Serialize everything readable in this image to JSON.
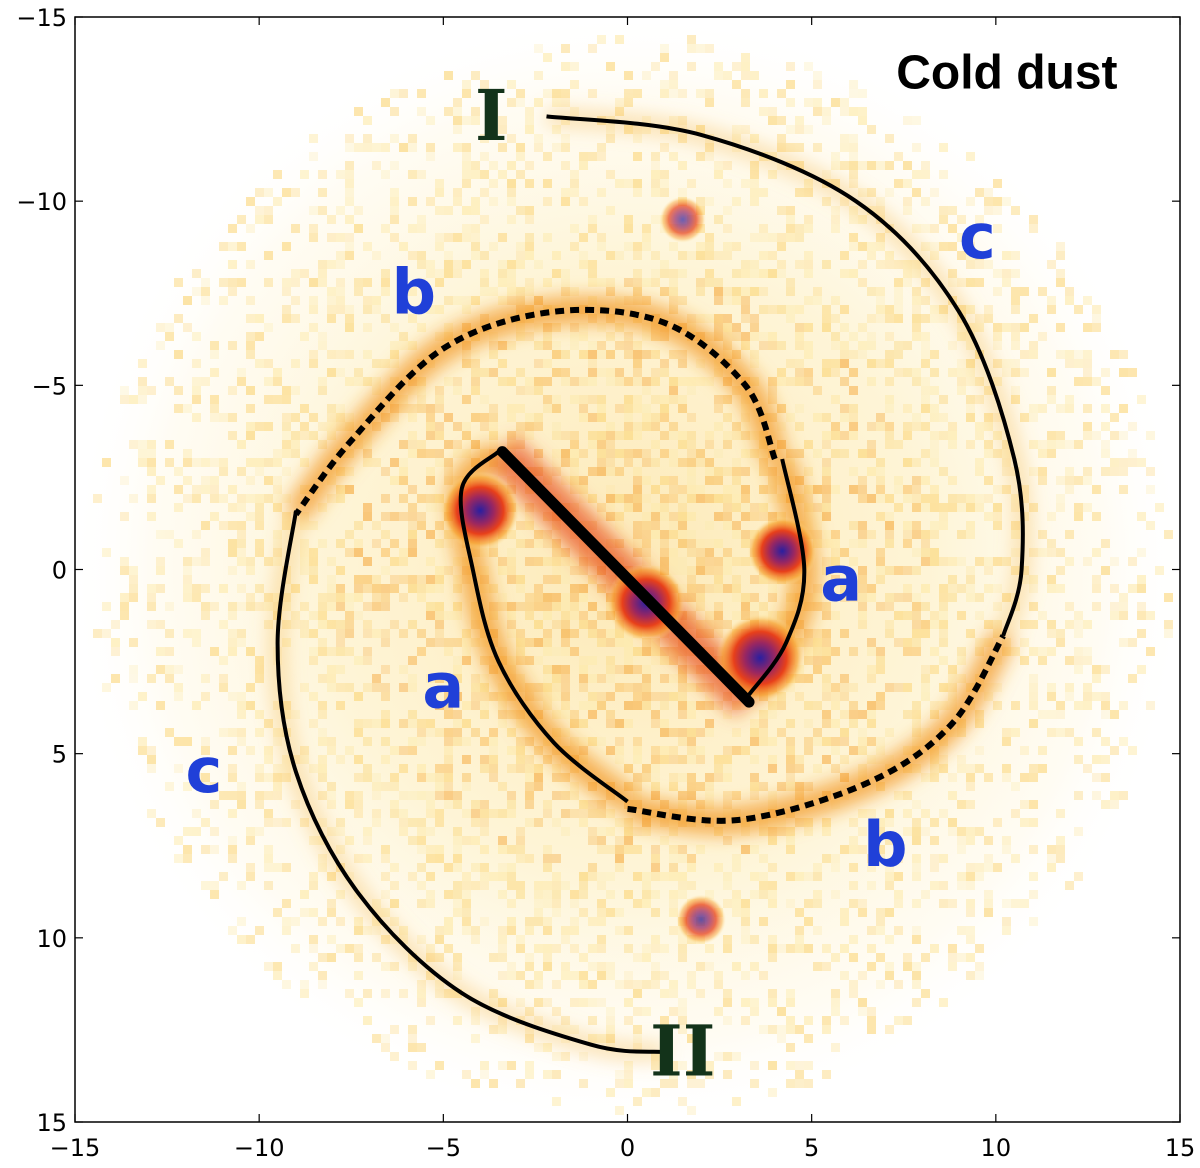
{
  "chart_data": {
    "type": "heatmap",
    "title": "Cold dust",
    "xlabel": "",
    "ylabel": "",
    "xlim": [
      -15,
      15
    ],
    "ylim": [
      15,
      -15
    ],
    "y_axis_inverted": true,
    "grid": false,
    "colormap": "white-yellow-orange-red-purple-blue",
    "x_ticks": [
      "−15",
      "−10",
      "−5",
      "0",
      "5",
      "10",
      "15"
    ],
    "x_tick_values": [
      -15,
      -10,
      -5,
      0,
      5,
      10,
      15
    ],
    "y_ticks": [
      "−15",
      "−10",
      "−5",
      "0",
      "5",
      "10",
      "15"
    ],
    "y_tick_values": [
      -15,
      -10,
      -5,
      0,
      5,
      10,
      15
    ],
    "bar": {
      "from": [
        -3.4,
        -3.2
      ],
      "to": [
        3.3,
        3.6
      ]
    },
    "emission_peaks": [
      {
        "x": 3.6,
        "y": 2.4,
        "level": 1.0
      },
      {
        "x": 0.5,
        "y": 0.9,
        "level": 0.85
      },
      {
        "x": -4.0,
        "y": -1.6,
        "level": 0.85
      },
      {
        "x": 4.2,
        "y": -0.5,
        "level": 0.7
      },
      {
        "x": 2.0,
        "y": 9.5,
        "level": 0.4
      },
      {
        "x": 1.5,
        "y": -9.5,
        "level": 0.35
      }
    ],
    "arm_paths": [
      {
        "name": "inner-arm-upper",
        "style": "solid",
        "points": [
          [
            -3.5,
            -3.2
          ],
          [
            -4.5,
            -2.2
          ],
          [
            -4.2,
            0
          ],
          [
            -3.5,
            2.5
          ],
          [
            -2,
            4.7
          ],
          [
            0,
            6.3
          ]
        ]
      },
      {
        "name": "inner-arm-lower",
        "style": "solid",
        "points": [
          [
            3.3,
            3.4
          ],
          [
            4.3,
            2
          ],
          [
            4.8,
            0
          ],
          [
            4.2,
            -3.0
          ]
        ]
      },
      {
        "name": "middle-arm-upper",
        "style": "dotted",
        "points": [
          [
            4.0,
            -3.0
          ],
          [
            3.2,
            -5.0
          ],
          [
            1.0,
            -6.7
          ],
          [
            -2.0,
            -7.0
          ],
          [
            -5.0,
            -6.0
          ],
          [
            -7.5,
            -3.5
          ],
          [
            -9.0,
            -1.5
          ]
        ]
      },
      {
        "name": "middle-arm-lower",
        "style": "dotted",
        "points": [
          [
            0,
            6.5
          ],
          [
            3.0,
            6.8
          ],
          [
            6.5,
            5.8
          ],
          [
            8.8,
            4.2
          ],
          [
            10.2,
            1.8
          ]
        ]
      },
      {
        "name": "outer-arm-upper",
        "style": "solid",
        "points": [
          [
            -2.2,
            -12.3
          ],
          [
            2.0,
            -11.8
          ],
          [
            6.2,
            -10.0
          ],
          [
            9.0,
            -7.0
          ],
          [
            10.5,
            -3.0
          ],
          [
            10.7,
            0
          ],
          [
            10.2,
            1.8
          ]
        ]
      },
      {
        "name": "outer-arm-lower",
        "style": "solid",
        "points": [
          [
            -9.0,
            -1.6
          ],
          [
            -9.5,
            2.0
          ],
          [
            -9.0,
            5.5
          ],
          [
            -7.3,
            8.8
          ],
          [
            -4.5,
            11.5
          ],
          [
            -1.0,
            12.9
          ],
          [
            1.0,
            13.1
          ]
        ]
      }
    ],
    "annotations": [
      {
        "text": "Cold dust",
        "x": 10.3,
        "y": -13.6,
        "kind": "title"
      },
      {
        "text": "I",
        "x": -3.7,
        "y": -12.2,
        "kind": "arm-id"
      },
      {
        "text": "II",
        "x": 1.5,
        "y": 13.2,
        "kind": "arm-id"
      },
      {
        "text": "a",
        "x": 5.8,
        "y": 0.3,
        "kind": "segment"
      },
      {
        "text": "a",
        "x": -5.0,
        "y": 3.2,
        "kind": "segment"
      },
      {
        "text": "b",
        "x": -5.8,
        "y": -7.5,
        "kind": "segment"
      },
      {
        "text": "b",
        "x": 7.0,
        "y": 7.5,
        "kind": "segment"
      },
      {
        "text": "c",
        "x": 9.5,
        "y": -9.0,
        "kind": "segment"
      },
      {
        "text": "c",
        "x": -11.5,
        "y": 5.5,
        "kind": "segment"
      }
    ],
    "colors": {
      "segment_labels": "#2040d8",
      "arm_id_labels": "#13331a",
      "title": "#000000",
      "curves": "#000000"
    }
  }
}
